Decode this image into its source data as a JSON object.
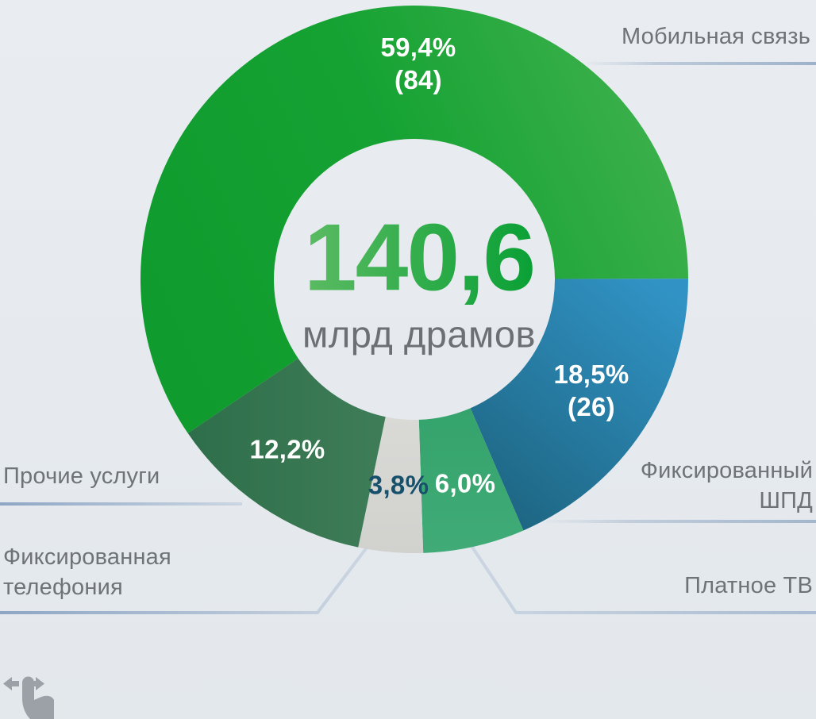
{
  "page": {
    "background_color": "#e6eaee",
    "label_text_color": "#6e7377",
    "leader_line_color": "#9fb3cb"
  },
  "chart_data": {
    "type": "pie",
    "subtype": "donut",
    "title_value": "140,6",
    "title_unit": "млрд драмов",
    "total_value": 140.6,
    "center_value_gradient": [
      "#5cbb63",
      "#09a035"
    ],
    "legend_position": "callout-labels",
    "start_angle_deg": 235.8,
    "segments": [
      {
        "id": "mobile",
        "label": "Мобильная связь",
        "pct": 59.4,
        "pct_label": "59,4%",
        "value": 84,
        "value_label": "(84)",
        "color_from": "#0f9b2d",
        "color_mid": "#15a233",
        "color_to": "#3fb14d",
        "label_color": "#ffffff"
      },
      {
        "id": "shpd",
        "label": "Фиксированный ШПД",
        "pct": 18.5,
        "pct_label": "18,5%",
        "value": 26,
        "value_label": "(26)",
        "color_from": "#3193c5",
        "color_to": "#1d6480",
        "label_color": "#ffffff"
      },
      {
        "id": "paytv",
        "label": "Платное ТВ",
        "pct": 6.0,
        "pct_label": "6,0%",
        "color_from": "#35a36c",
        "color_to": "#40ab77",
        "label_color": "#ffffff"
      },
      {
        "id": "telephony",
        "label": "Фиксированная телефония",
        "pct": 3.8,
        "pct_label": "3,8%",
        "color_from": "#d9d9d6",
        "color_to": "#d1d1ce",
        "label_color": "#17506b"
      },
      {
        "id": "other",
        "label": "Прочие услуги",
        "pct": 12.2,
        "pct_label": "12,2%",
        "color_from": "#2e6e4a",
        "color_to": "#3e7d57",
        "label_color": "#ffffff"
      }
    ]
  },
  "icons": {
    "gesture": "swipe-horizontal"
  }
}
